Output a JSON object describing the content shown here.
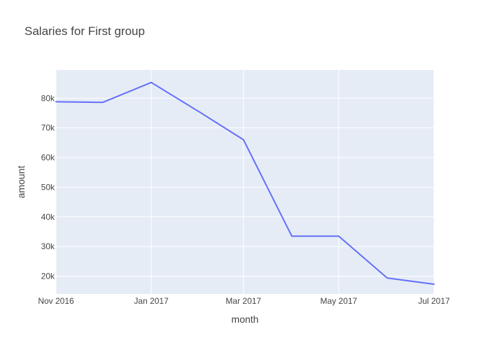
{
  "chart_data": {
    "type": "line",
    "title": "Salaries for First group",
    "xlabel": "month",
    "ylabel": "amount",
    "x_axis_type": "date",
    "xlim": [
      "2016-11-01",
      "2017-07-01"
    ],
    "ylim": [
      14000,
      89500
    ],
    "grid": true,
    "legend": "none",
    "x_ticks": [
      {
        "value": "2016-11-01",
        "label": "Nov 2016"
      },
      {
        "value": "2017-01-01",
        "label": "Jan 2017"
      },
      {
        "value": "2017-03-01",
        "label": "Mar 2017"
      },
      {
        "value": "2017-05-01",
        "label": "May 2017"
      },
      {
        "value": "2017-07-01",
        "label": "Jul 2017"
      }
    ],
    "y_ticks": [
      {
        "value": 20000,
        "label": "20k"
      },
      {
        "value": 30000,
        "label": "30k"
      },
      {
        "value": 40000,
        "label": "40k"
      },
      {
        "value": 50000,
        "label": "50k"
      },
      {
        "value": 60000,
        "label": "60k"
      },
      {
        "value": 70000,
        "label": "70k"
      },
      {
        "value": 80000,
        "label": "80k"
      }
    ],
    "x": [
      "2016-11-01",
      "2016-12-01",
      "2017-01-01",
      "2017-02-01",
      "2017-03-01",
      "2017-04-01",
      "2017-05-01",
      "2017-06-01",
      "2017-07-01"
    ],
    "series": [
      {
        "values": [
          78800,
          78600,
          85300,
          75300,
          66000,
          33500,
          33500,
          19400,
          17300
        ],
        "color": "#636efa"
      }
    ]
  },
  "colors": {
    "plot_background": "#e5ecf6",
    "grid": "#ffffff",
    "text": "#444444",
    "line": "#636efa"
  }
}
